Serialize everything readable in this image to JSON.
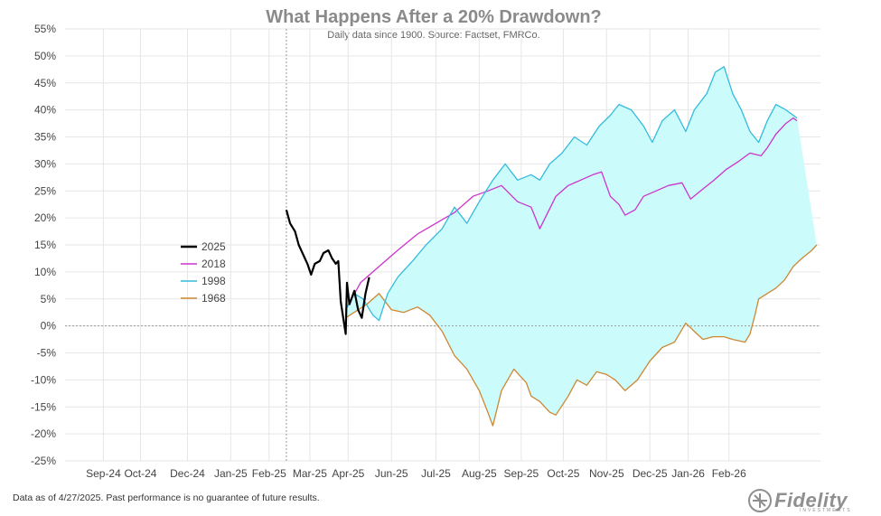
{
  "header": {
    "title": "What Happens After a 20% Drawdown?",
    "subtitle": "Daily data since 1900.  Source: Factset, FMRCo."
  },
  "footer": {
    "note": "Data as of 4/27/2025. Past performance is no guarantee of future results.",
    "logo_text": "Fidelity",
    "logo_sub": "INVESTMENTS"
  },
  "colors": {
    "s2025": "#000000",
    "s2018": "#cc33cc",
    "s1998": "#33bbdd",
    "s1968": "#cc8833",
    "fill": "#ccfbfc",
    "grid": "#e6e6e6"
  },
  "chart_data": {
    "type": "line",
    "title": "What Happens After a 20% Drawdown?",
    "subtitle": "Daily data since 1900.  Source: Factset, FMRCo.",
    "xlabel": "",
    "ylabel": "",
    "ylim": [
      -25,
      55
    ],
    "ytick_labels": [
      "55%",
      "50%",
      "45%",
      "40%",
      "35%",
      "30%",
      "25%",
      "20%",
      "15%",
      "10%",
      "5%",
      "0%",
      "-5%",
      "-10%",
      "-15%",
      "-20%",
      "-25%"
    ],
    "xtick_labels": [
      "Sep-24",
      "Oct-24",
      "Dec-24",
      "Jan-25",
      "Feb-25",
      "Mar-25",
      "Apr-25",
      "Jun-25",
      "Jul-25",
      "Aug-25",
      "Sep-25",
      "Oct-25",
      "Nov-25",
      "Dec-25",
      "Jan-26",
      "Feb-26"
    ],
    "legend": {
      "placement": "left-middle",
      "entries": [
        "2025",
        "2018",
        "1998",
        "1968"
      ]
    },
    "grid": true,
    "shaded_band": "between the 1998 and 1968 paths",
    "series": [
      {
        "name": "2025",
        "points": [
          [
            "2025-02-19",
            21.5
          ],
          [
            "2025-02-22",
            19.0
          ],
          [
            "2025-02-26",
            17.5
          ],
          [
            "2025-03-01",
            15.0
          ],
          [
            "2025-03-05",
            13.0
          ],
          [
            "2025-03-08",
            11.5
          ],
          [
            "2025-03-11",
            9.5
          ],
          [
            "2025-03-14",
            11.5
          ],
          [
            "2025-03-18",
            12.0
          ],
          [
            "2025-03-21",
            13.5
          ],
          [
            "2025-03-25",
            14.0
          ],
          [
            "2025-03-28",
            12.5
          ],
          [
            "2025-03-31",
            11.5
          ],
          [
            "2025-04-02",
            12.0
          ],
          [
            "2025-04-04",
            4.5
          ],
          [
            "2025-04-07",
            0.0
          ],
          [
            "2025-04-08",
            -1.5
          ],
          [
            "2025-04-09",
            8.0
          ],
          [
            "2025-04-11",
            4.0
          ],
          [
            "2025-04-15",
            6.5
          ],
          [
            "2025-04-18",
            3.0
          ],
          [
            "2025-04-21",
            1.5
          ],
          [
            "2025-04-24",
            6.0
          ],
          [
            "2025-04-27",
            9.0
          ]
        ]
      },
      {
        "name": "2018",
        "points": [
          [
            "2025-04-08",
            3.0
          ],
          [
            "2025-04-20",
            8.0
          ],
          [
            "2025-05-05",
            11.0
          ],
          [
            "2025-05-20",
            14.0
          ],
          [
            "2025-06-05",
            17.0
          ],
          [
            "2025-06-20",
            19.0
          ],
          [
            "2025-07-05",
            21.0
          ],
          [
            "2025-07-20",
            24.0
          ],
          [
            "2025-08-01",
            25.0
          ],
          [
            "2025-08-12",
            26.0
          ],
          [
            "2025-08-25",
            23.0
          ],
          [
            "2025-09-05",
            22.0
          ],
          [
            "2025-09-12",
            18.0
          ],
          [
            "2025-09-25",
            24.0
          ],
          [
            "2025-10-05",
            26.0
          ],
          [
            "2025-10-15",
            27.0
          ],
          [
            "2025-10-25",
            28.0
          ],
          [
            "2025-11-01",
            28.5
          ],
          [
            "2025-11-08",
            24.0
          ],
          [
            "2025-11-15",
            22.5
          ],
          [
            "2025-11-20",
            20.5
          ],
          [
            "2025-11-28",
            21.5
          ],
          [
            "2025-12-05",
            24.0
          ],
          [
            "2025-12-15",
            25.0
          ],
          [
            "2025-12-25",
            26.0
          ],
          [
            "2026-01-05",
            26.5
          ],
          [
            "2026-01-12",
            23.5
          ],
          [
            "2026-01-20",
            25.0
          ],
          [
            "2026-01-31",
            27.0
          ],
          [
            "2026-02-10",
            29.0
          ],
          [
            "2026-02-20",
            30.5
          ],
          [
            "2026-03-01",
            32.0
          ],
          [
            "2026-03-10",
            31.5
          ],
          [
            "2026-03-15",
            33.0
          ],
          [
            "2026-03-22",
            35.5
          ],
          [
            "2026-03-30",
            37.5
          ],
          [
            "2026-04-05",
            38.5
          ],
          [
            "2026-04-08",
            38.0
          ]
        ]
      },
      {
        "name": "1998",
        "points": [
          [
            "2025-04-08",
            3.0
          ],
          [
            "2025-04-15",
            6.0
          ],
          [
            "2025-04-22",
            5.0
          ],
          [
            "2025-04-30",
            2.0
          ],
          [
            "2025-05-05",
            1.0
          ],
          [
            "2025-05-12",
            6.0
          ],
          [
            "2025-05-20",
            9.0
          ],
          [
            "2025-06-01",
            12.0
          ],
          [
            "2025-06-12",
            15.0
          ],
          [
            "2025-06-25",
            18.0
          ],
          [
            "2025-07-05",
            22.0
          ],
          [
            "2025-07-15",
            19.0
          ],
          [
            "2025-07-25",
            23.0
          ],
          [
            "2025-08-05",
            27.0
          ],
          [
            "2025-08-15",
            30.0
          ],
          [
            "2025-08-25",
            27.0
          ],
          [
            "2025-09-05",
            28.0
          ],
          [
            "2025-09-12",
            27.0
          ],
          [
            "2025-09-20",
            30.0
          ],
          [
            "2025-09-30",
            32.0
          ],
          [
            "2025-10-10",
            35.0
          ],
          [
            "2025-10-20",
            33.5
          ],
          [
            "2025-10-30",
            37.0
          ],
          [
            "2025-11-08",
            39.0
          ],
          [
            "2025-11-15",
            41.0
          ],
          [
            "2025-11-25",
            40.0
          ],
          [
            "2025-12-05",
            37.0
          ],
          [
            "2025-12-12",
            34.0
          ],
          [
            "2025-12-20",
            38.0
          ],
          [
            "2025-12-30",
            40.0
          ],
          [
            "2026-01-08",
            36.0
          ],
          [
            "2026-01-15",
            40.0
          ],
          [
            "2026-01-25",
            43.0
          ],
          [
            "2026-02-01",
            47.0
          ],
          [
            "2026-02-08",
            48.0
          ],
          [
            "2026-02-15",
            43.0
          ],
          [
            "2026-02-22",
            40.0
          ],
          [
            "2026-03-01",
            36.0
          ],
          [
            "2026-03-08",
            34.0
          ],
          [
            "2026-03-15",
            38.0
          ],
          [
            "2026-03-22",
            41.0
          ],
          [
            "2026-03-30",
            40.0
          ],
          [
            "2026-04-08",
            38.5
          ]
        ]
      },
      {
        "name": "1968",
        "points": [
          [
            "2025-04-08",
            1.5
          ],
          [
            "2025-04-25",
            4.0
          ],
          [
            "2025-05-05",
            6.0
          ],
          [
            "2025-05-15",
            3.0
          ],
          [
            "2025-05-25",
            2.5
          ],
          [
            "2025-06-05",
            3.5
          ],
          [
            "2025-06-15",
            2.0
          ],
          [
            "2025-06-25",
            -1.0
          ],
          [
            "2025-07-05",
            -5.5
          ],
          [
            "2025-07-15",
            -8.0
          ],
          [
            "2025-07-25",
            -12.0
          ],
          [
            "2025-08-01",
            -16.0
          ],
          [
            "2025-08-05",
            -18.5
          ],
          [
            "2025-08-12",
            -12.0
          ],
          [
            "2025-08-22",
            -8.0
          ],
          [
            "2025-09-01",
            -10.5
          ],
          [
            "2025-09-05",
            -13.0
          ],
          [
            "2025-09-12",
            -14.0
          ],
          [
            "2025-09-20",
            -16.0
          ],
          [
            "2025-09-25",
            -16.5
          ],
          [
            "2025-10-05",
            -13.0
          ],
          [
            "2025-10-12",
            -10.0
          ],
          [
            "2025-10-20",
            -11.0
          ],
          [
            "2025-10-28",
            -8.5
          ],
          [
            "2025-11-05",
            -9.0
          ],
          [
            "2025-11-12",
            -10.0
          ],
          [
            "2025-11-20",
            -12.0
          ],
          [
            "2025-11-30",
            -10.0
          ],
          [
            "2025-12-10",
            -6.5
          ],
          [
            "2025-12-20",
            -4.0
          ],
          [
            "2025-12-30",
            -3.0
          ],
          [
            "2026-01-08",
            0.5
          ],
          [
            "2026-01-15",
            -1.0
          ],
          [
            "2026-01-22",
            -2.5
          ],
          [
            "2026-01-30",
            -2.0
          ],
          [
            "2026-02-08",
            -2.0
          ],
          [
            "2026-02-15",
            -2.5
          ],
          [
            "2026-02-25",
            -3.0
          ],
          [
            "2026-03-01",
            -1.5
          ],
          [
            "2026-03-05",
            2.0
          ],
          [
            "2026-03-08",
            5.0
          ],
          [
            "2026-03-15",
            6.0
          ],
          [
            "2026-03-22",
            7.0
          ],
          [
            "2026-03-29",
            8.5
          ],
          [
            "2026-04-05",
            11.0
          ],
          [
            "2026-04-12",
            12.5
          ],
          [
            "2026-04-20",
            14.0
          ],
          [
            "2026-04-24",
            15.0
          ]
        ]
      }
    ]
  }
}
